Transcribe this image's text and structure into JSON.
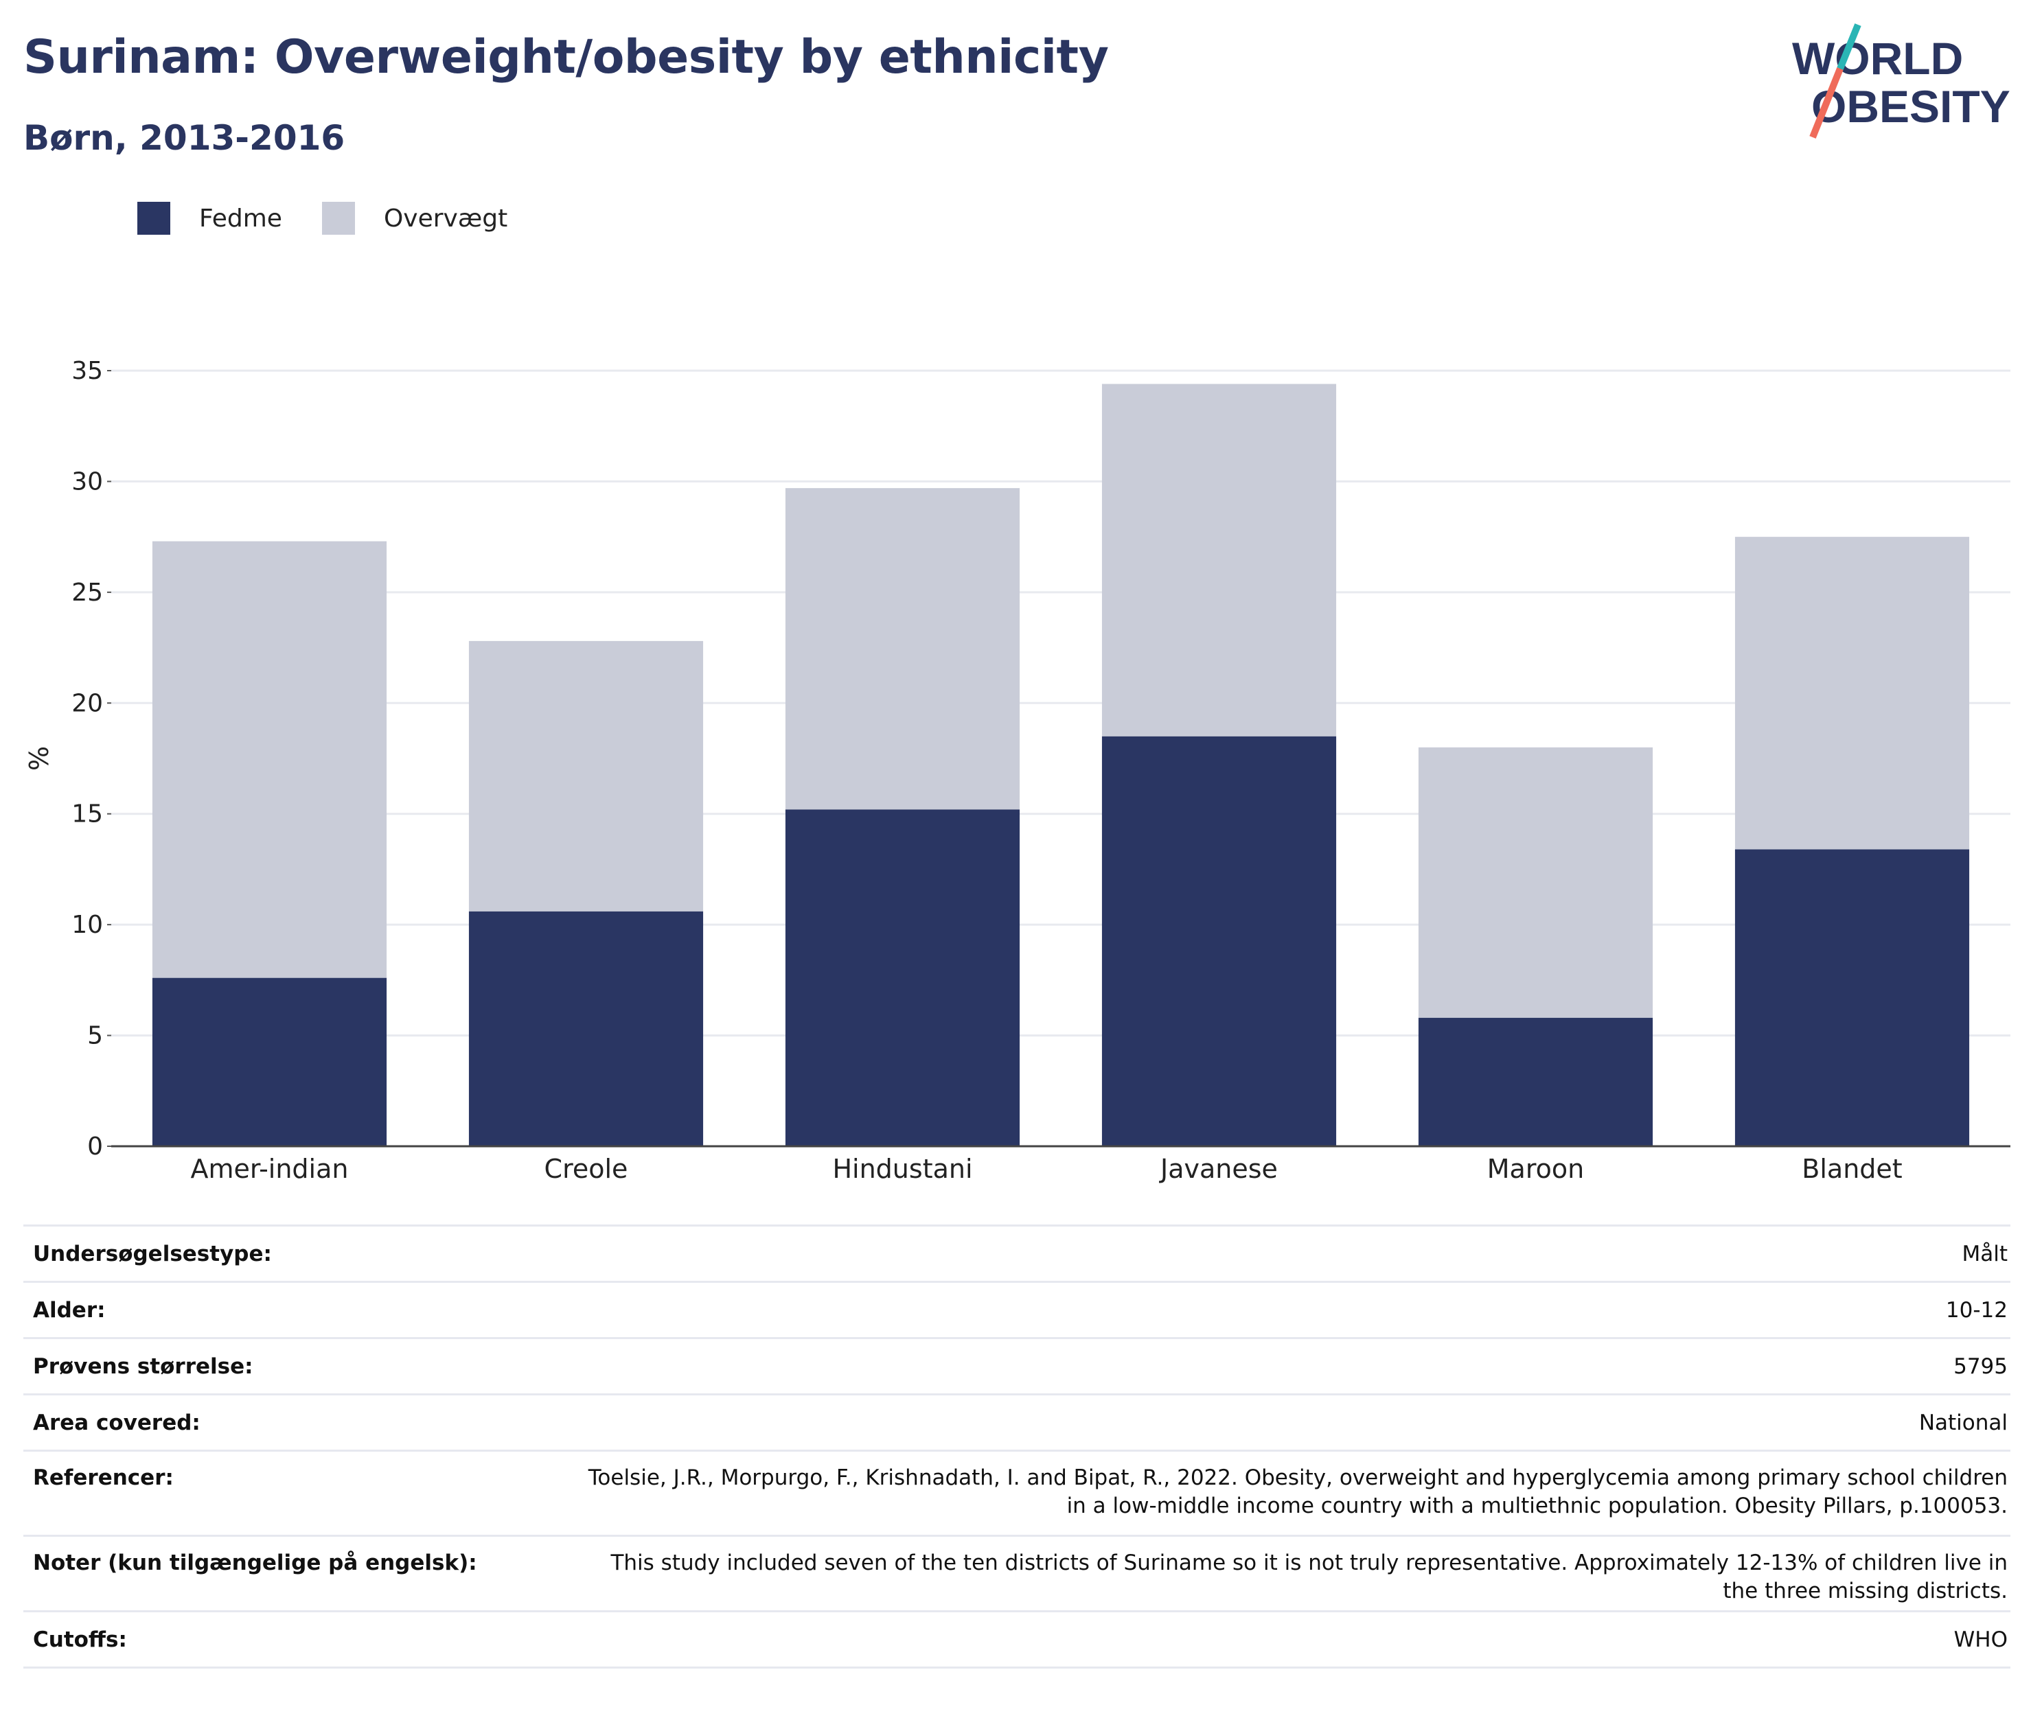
{
  "header": {
    "title": "Surinam: Overweight/obesity by ethnicity",
    "subtitle": "Børn, 2013-2016"
  },
  "logo": {
    "line1": "WORLD",
    "line2": "OBESITY",
    "colors": {
      "text": "#2a3560",
      "accent_teal": "#2ab5b5",
      "accent_coral": "#ef6b5a"
    }
  },
  "legend": [
    {
      "label": "Fedme",
      "color": "#2a3663"
    },
    {
      "label": "Overvægt",
      "color": "#c9ccd8"
    }
  ],
  "chart_data": {
    "type": "bar",
    "stacked": true,
    "categories": [
      "Amer-indian",
      "Creole",
      "Hindustani",
      "Javanese",
      "Maroon",
      "Blandet"
    ],
    "series": [
      {
        "name": "Fedme",
        "color": "#2a3663",
        "values": [
          7.6,
          10.6,
          15.2,
          18.5,
          5.8,
          13.4
        ]
      },
      {
        "name": "Overvægt",
        "color": "#c9ccd8",
        "values": [
          19.7,
          12.2,
          14.5,
          15.9,
          12.2,
          14.1
        ]
      }
    ],
    "xlabel": "",
    "ylabel": "%",
    "ylim": [
      0,
      35
    ],
    "yticks": [
      0,
      5,
      10,
      15,
      20,
      25,
      30,
      35
    ],
    "grid": true,
    "legend_position": "top-left"
  },
  "info": [
    {
      "label": "Undersøgelsestype:",
      "value": "Målt"
    },
    {
      "label": "Alder:",
      "value": "10-12"
    },
    {
      "label": "Prøvens størrelse:",
      "value": "5795"
    },
    {
      "label": "Area covered:",
      "value": "National"
    },
    {
      "label": "Referencer:",
      "value": "Toelsie, J.R., Morpurgo, F., Krishnadath, I. and Bipat, R., 2022. Obesity, overweight and hyperglycemia among primary school children in a low-middle income country with a multiethnic population. Obesity Pillars, p.100053."
    },
    {
      "label": "Noter (kun tilgængelige på engelsk):",
      "value": "This study included seven of the ten districts of Suriname so it is not truly representative. Approximately 12-13% of children live in the three missing districts."
    },
    {
      "label": "Cutoffs:",
      "value": "WHO"
    }
  ]
}
